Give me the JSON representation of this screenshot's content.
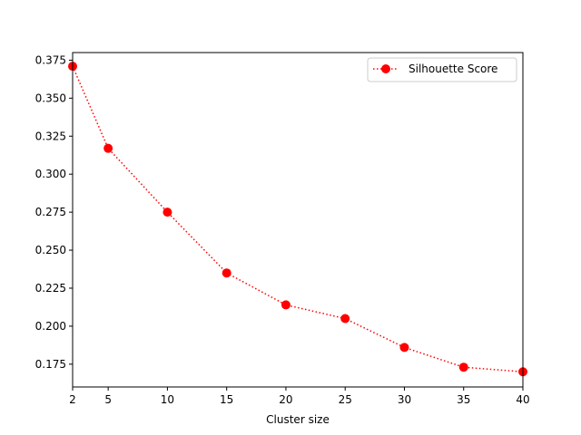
{
  "chart_data": {
    "type": "line",
    "title": "",
    "xlabel": "Cluster size",
    "ylabel": "",
    "xlim": [
      2,
      40
    ],
    "ylim": [
      0.16,
      0.38
    ],
    "xticks": [
      2,
      5,
      10,
      15,
      20,
      25,
      30,
      35,
      40
    ],
    "yticks": [
      0.175,
      0.2,
      0.225,
      0.25,
      0.275,
      0.3,
      0.325,
      0.35,
      0.375
    ],
    "ytick_labels": [
      "0.175",
      "0.200",
      "0.225",
      "0.250",
      "0.275",
      "0.300",
      "0.325",
      "0.350",
      "0.375"
    ],
    "grid": false,
    "legend_position": "top-right",
    "series": [
      {
        "name": "Silhouette Score",
        "color": "#ff0000",
        "line_style": "dotted",
        "marker": "circle",
        "x": [
          2,
          5,
          10,
          15,
          20,
          25,
          30,
          35,
          40
        ],
        "y": [
          0.371,
          0.317,
          0.275,
          0.235,
          0.214,
          0.205,
          0.186,
          0.173,
          0.17
        ]
      }
    ]
  }
}
